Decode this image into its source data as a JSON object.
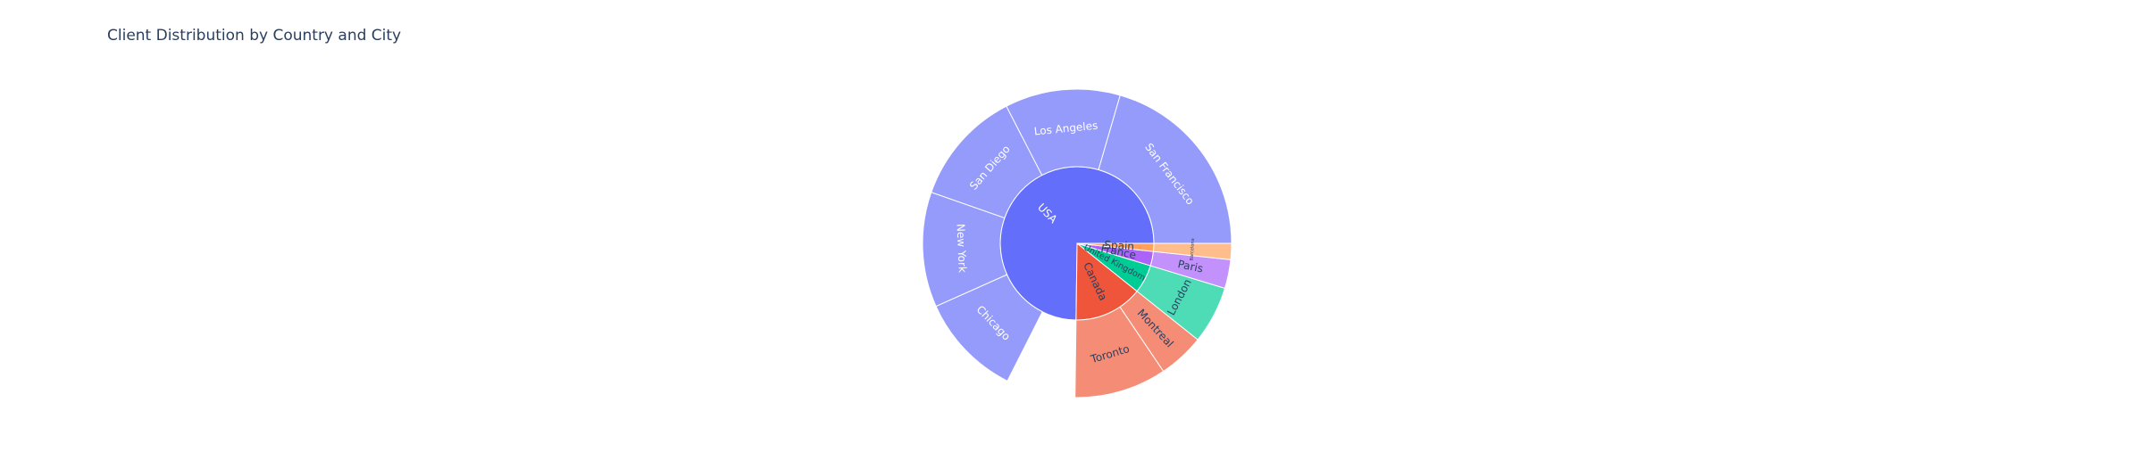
{
  "chart_data": {
    "type": "sunburst",
    "title": "Client Distribution by Country and City",
    "rings": [
      "country",
      "city"
    ],
    "hierarchy": [
      {
        "name": "USA",
        "value": 62,
        "color": "#636efa",
        "child_color": "#949bfb",
        "children": [
          {
            "name": "San Francisco",
            "value": 17
          },
          {
            "name": "Los Angeles",
            "value": 10
          },
          {
            "name": "San Diego",
            "value": 10
          },
          {
            "name": "New York",
            "value": 10
          },
          {
            "name": "Chicago",
            "value": 9
          }
        ]
      },
      {
        "name": "Canada",
        "value": 12,
        "color": "#ef553b",
        "child_color": "#f58c76",
        "children": [
          {
            "name": "Toronto",
            "value": 8
          },
          {
            "name": "Montreal",
            "value": 4
          }
        ]
      },
      {
        "name": "United Kingdom",
        "value": 5,
        "color": "#00cc96",
        "child_color": "#4ddcb5",
        "children": [
          {
            "name": "London",
            "value": 5
          }
        ]
      },
      {
        "name": "France",
        "value": 2.5,
        "color": "#ab63fa",
        "child_color": "#c391fb",
        "children": [
          {
            "name": "Paris",
            "value": 2.5
          }
        ]
      },
      {
        "name": "Spain",
        "value": 1.4,
        "color": "#ffa15a",
        "child_color": "#ffbd8b",
        "children": [
          {
            "name": "Barcelona",
            "value": 1.4
          }
        ]
      }
    ]
  }
}
